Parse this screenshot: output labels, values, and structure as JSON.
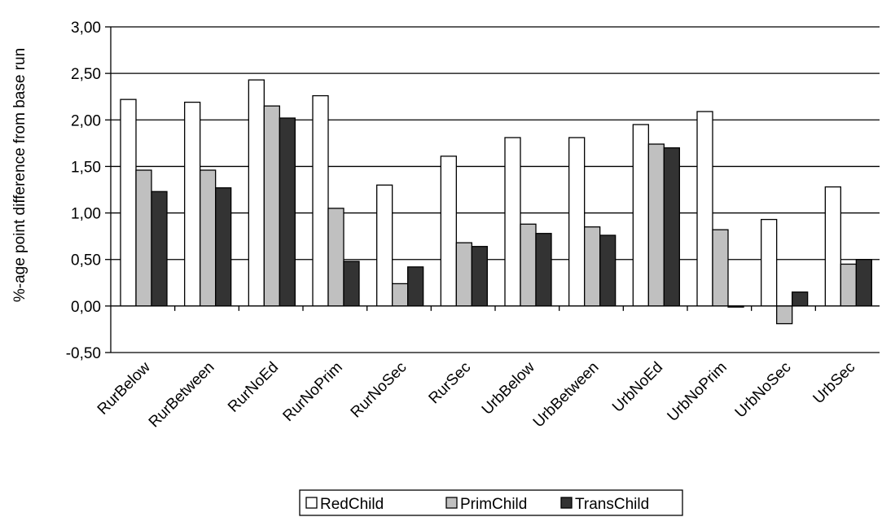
{
  "chart_data": {
    "type": "bar",
    "title": "",
    "xlabel": "",
    "ylabel": "%-age point difference from base run",
    "ylim": [
      -0.5,
      3.0
    ],
    "ytick_step": 0.5,
    "ytick_labels": [
      "-0,50",
      "0,00",
      "0,50",
      "1,00",
      "1,50",
      "2,00",
      "2,50",
      "3,00"
    ],
    "grid": "horizontal",
    "legend_position": "bottom-center",
    "categories": [
      "RurBelow",
      "RurBetween",
      "RurNoEd",
      "RurNoPrim",
      "RurNoSec",
      "RurSec",
      "UrbBelow",
      "UrbBetween",
      "UrbNoEd",
      "UrbNoPrim",
      "UrbNoSec",
      "UrbSec"
    ],
    "series": [
      {
        "name": "RedChild",
        "color": "#ffffff",
        "values": [
          2.22,
          2.19,
          2.43,
          2.26,
          1.3,
          1.61,
          1.81,
          1.81,
          1.95,
          2.09,
          0.93,
          1.28
        ]
      },
      {
        "name": "PrimChild",
        "color": "#c0c0c0",
        "values": [
          1.46,
          1.46,
          2.15,
          1.05,
          0.24,
          0.68,
          0.88,
          0.85,
          1.74,
          0.82,
          -0.19,
          0.45
        ]
      },
      {
        "name": "TransChild",
        "color": "#333333",
        "values": [
          1.23,
          1.27,
          2.02,
          0.48,
          0.42,
          0.64,
          0.78,
          0.76,
          1.7,
          0.0,
          0.15,
          0.5
        ]
      }
    ]
  }
}
